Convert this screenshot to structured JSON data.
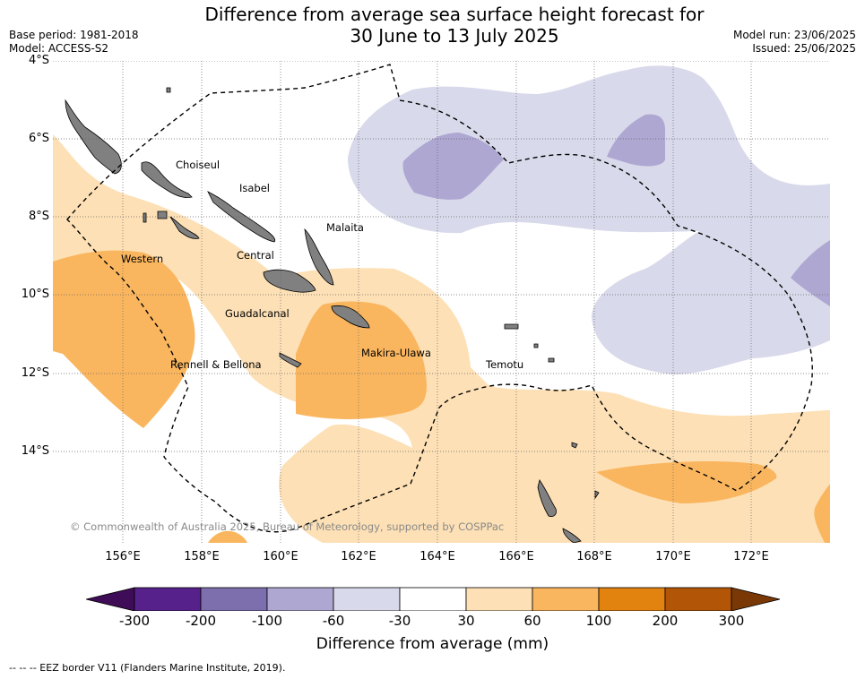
{
  "title": {
    "line1": "Difference from average sea surface height forecast for",
    "line2": "30 June to 13 July 2025"
  },
  "meta_left": {
    "base_period": "Base period: 1981-2018",
    "model": "Model: ACCESS-S2"
  },
  "meta_right": {
    "model_run": "Model run: 23/06/2025",
    "issued": "Issued: 25/06/2025"
  },
  "map_extent": {
    "lon_range": [
      154.5,
      174.0
    ],
    "lat_range": [
      -16.2,
      -4.0
    ]
  },
  "lat_ticks": [
    "4°S",
    "6°S",
    "8°S",
    "10°S",
    "12°S",
    "14°S"
  ],
  "lon_ticks": [
    "156°E",
    "158°E",
    "160°E",
    "162°E",
    "164°E",
    "166°E",
    "168°E",
    "170°E",
    "172°E"
  ],
  "place_labels": {
    "choiseul": "Choiseul",
    "isabel": "Isabel",
    "malaita": "Malaita",
    "western": "Western",
    "central": "Central",
    "guadalcanal": "Guadalcanal",
    "makira_ulawa": "Makira-Ulawa",
    "rennell_bellona": "Rennell & Bellona",
    "temotu": "Temotu"
  },
  "credit": "© Commonwealth of Australia 2025, Bureau of Meteorology, supported by COSPPac",
  "colorbar": {
    "title": "Difference from average (mm)",
    "ticks": [
      "-300",
      "-200",
      "-100",
      "-60",
      "-30",
      "30",
      "60",
      "100",
      "200",
      "300"
    ],
    "colors": [
      "#56218a",
      "#7d6fae",
      "#aea7d2",
      "#d8d9ea",
      "#ffffff",
      "#fde0b5",
      "#fab65f",
      "#e2820f",
      "#b25507"
    ],
    "extend_low_color": "#3f0c57",
    "extend_high_color": "#7a3806"
  },
  "colors": {
    "land": "#808080",
    "gridline": "#666666"
  },
  "eez_legend": "-- -- -- EEZ border V11 (Flanders Marine Institute, 2019)."
}
